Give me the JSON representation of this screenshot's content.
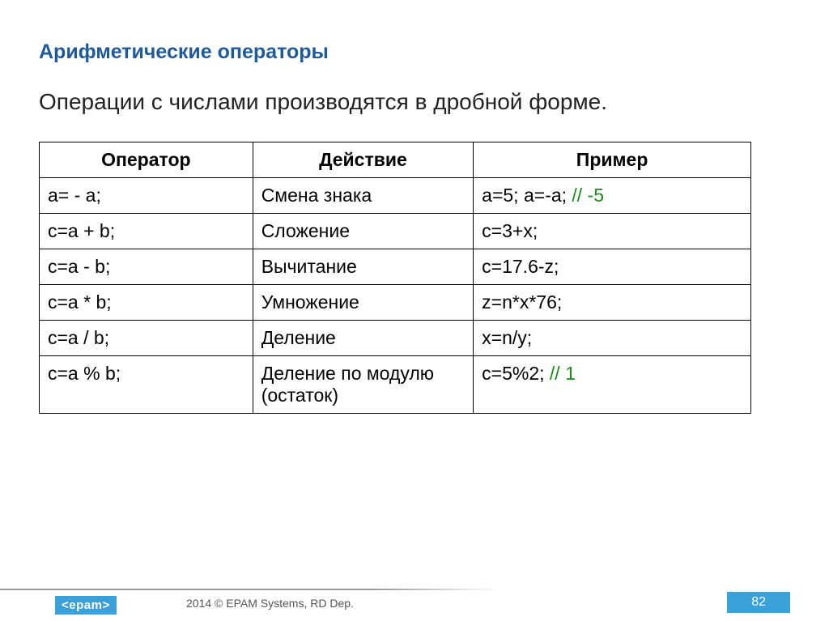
{
  "title": "Арифметические операторы",
  "subtitle": "Операции с числами производятся в дробной форме.",
  "table": {
    "columns": [
      "Оператор",
      "Действие",
      "Пример"
    ],
    "rows": [
      {
        "op": "a= - a;",
        "action": "Смена знака",
        "example": "a=5; a=-a; ",
        "comment": "// -5"
      },
      {
        "op": "c=a + b;",
        "action": "Сложение",
        "example": "c=3+x;",
        "comment": ""
      },
      {
        "op": "c=a - b;",
        "action": "Вычитание",
        "example": "c=17.6-z;",
        "comment": ""
      },
      {
        "op": "c=a * b;",
        "action": "Умножение",
        "example": "z=n*x*76;",
        "comment": ""
      },
      {
        "op": "c=a / b;",
        "action": "Деление",
        "example": "x=n/y;",
        "comment": ""
      },
      {
        "op": "c=a % b;",
        "action": "Деление по модулю (остаток)",
        "example": "c=5%2; ",
        "comment": "// 1"
      }
    ],
    "col_widths_pct": [
      30,
      31,
      39
    ],
    "border_color": "#000000",
    "font_size_pt": 17
  },
  "footer": {
    "logo_text": "<epam>",
    "copyright": "2014 © EPAM Systems, RD Dep.",
    "page_number": "82",
    "accent_color": "#3aa0d8"
  },
  "colors": {
    "title_color": "#1f5a9a",
    "text_color": "#222222",
    "comment_color": "#1a8a1a",
    "background": "#ffffff"
  }
}
